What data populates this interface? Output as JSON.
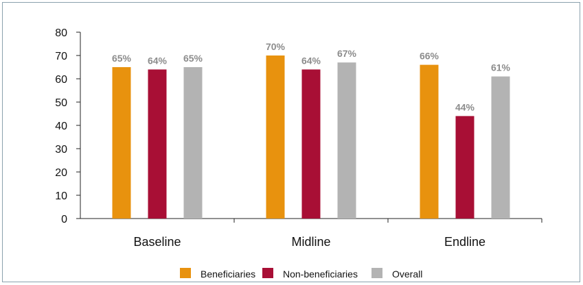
{
  "chart_data": {
    "type": "bar",
    "categories": [
      "Baseline",
      "Midline",
      "Endline"
    ],
    "series": [
      {
        "name": "Beneficiaries",
        "color": "#e8920e",
        "values": [
          65,
          70,
          66
        ],
        "labels": [
          "65%",
          "70%",
          "66%"
        ]
      },
      {
        "name": "Non-beneficiaries",
        "color": "#a80f35",
        "values": [
          64,
          64,
          44
        ],
        "labels": [
          "64%",
          "64%",
          "44%"
        ]
      },
      {
        "name": "Overall",
        "color": "#b3b3b3",
        "values": [
          65,
          67,
          61
        ],
        "labels": [
          "65%",
          "67%",
          "61%"
        ]
      }
    ],
    "ylim": [
      0,
      80
    ],
    "yticks": [
      0,
      10,
      20,
      30,
      40,
      50,
      60,
      70,
      80
    ],
    "title": "",
    "xlabel": "",
    "ylabel": "",
    "grid": false,
    "legend_position": "bottom"
  }
}
